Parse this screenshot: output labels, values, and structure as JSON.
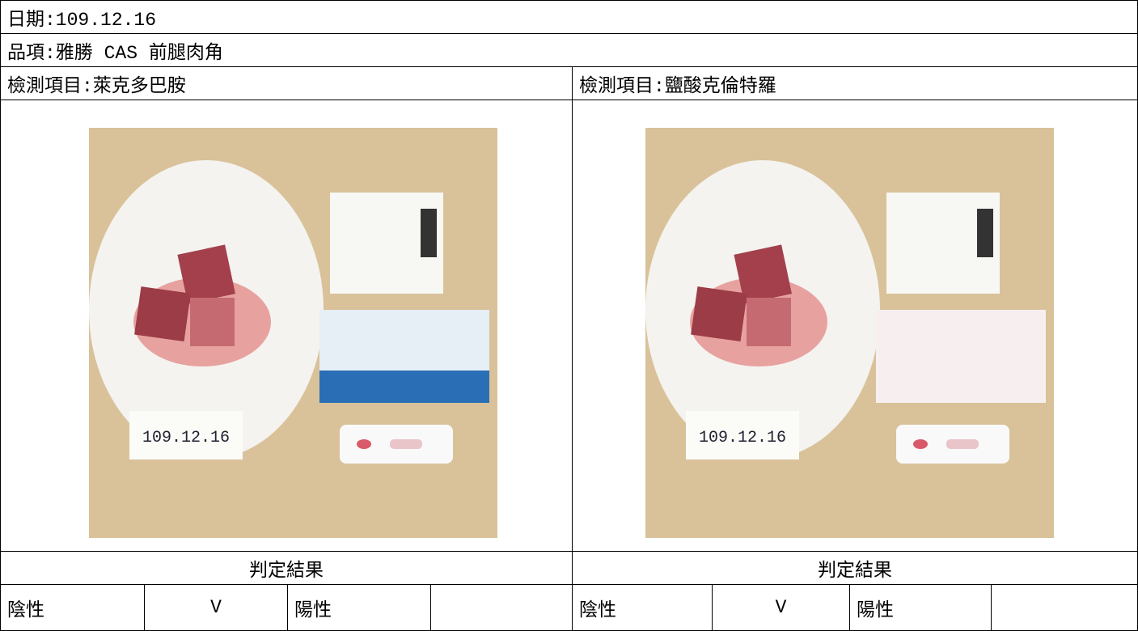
{
  "header": {
    "date": "日期:109.12.16",
    "item": "品項:雅勝 CAS 前腿肉角"
  },
  "tests": [
    {
      "label": "檢測項目:萊克多巴胺",
      "photo_note": "109.12.16",
      "result_header": "判定結果",
      "negative": "陰性",
      "negative_mark": "V",
      "positive": "陽性"
    },
    {
      "label": "檢測項目:鹽酸克倫特羅",
      "photo_note": "109.12.16",
      "result_header": "判定結果",
      "negative": "陰性",
      "negative_mark": "V",
      "positive": "陽性"
    }
  ]
}
